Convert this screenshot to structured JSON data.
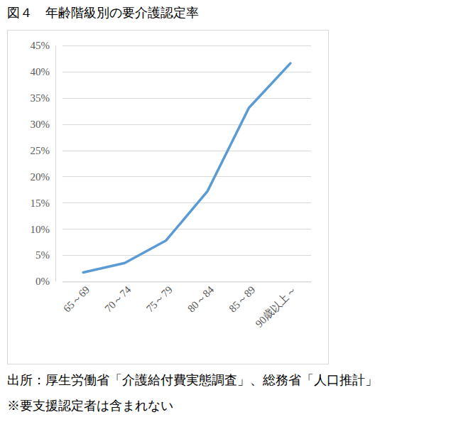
{
  "chart_data": {
    "type": "line",
    "title": "図４　年齢階級別の要介護認定率",
    "categories": [
      "65～69",
      "70～74",
      "75～79",
      "80～84",
      "85～89",
      "90歳以上～"
    ],
    "values": [
      1.7,
      3.5,
      7.8,
      17.2,
      33.1,
      41.6
    ],
    "color": "#5b9bd5",
    "ylim": [
      0,
      45
    ],
    "yticks": [
      {
        "value": 0,
        "label": "0%"
      },
      {
        "value": 5,
        "label": "5%"
      },
      {
        "value": 10,
        "label": "10%"
      },
      {
        "value": 15,
        "label": "15%"
      },
      {
        "value": 20,
        "label": "20%"
      },
      {
        "value": 25,
        "label": "25%"
      },
      {
        "value": 30,
        "label": "30%"
      },
      {
        "value": 35,
        "label": "35%"
      },
      {
        "value": 40,
        "label": "40%"
      },
      {
        "value": 45,
        "label": "45%"
      }
    ],
    "grid": true,
    "annotations": [
      "出所：厚生労働省「介護給付費実態調査」、総務省「人口推計」",
      "※要支援認定者は含まれない"
    ]
  }
}
